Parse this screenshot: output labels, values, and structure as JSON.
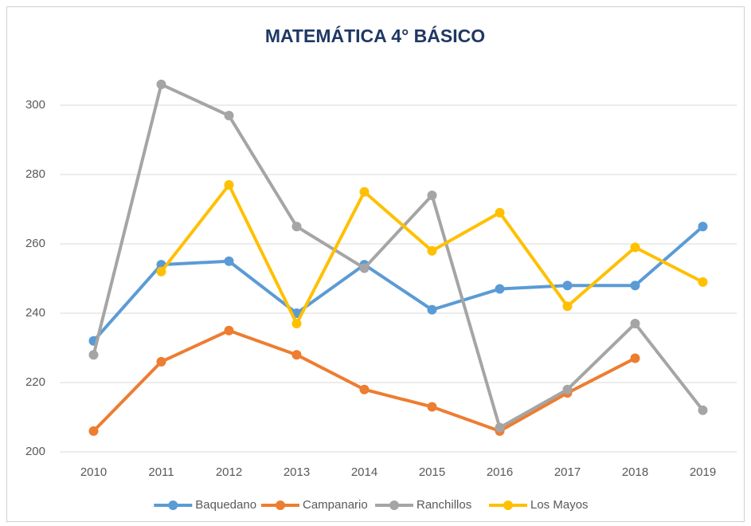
{
  "chart_data": {
    "type": "line",
    "title": "MATEMÁTICA 4° BÁSICO",
    "categories": [
      "2010",
      "2011",
      "2012",
      "2013",
      "2014",
      "2015",
      "2016",
      "2017",
      "2018",
      "2019"
    ],
    "series": [
      {
        "name": "Baquedano",
        "color": "#5b9bd5",
        "values": [
          232,
          254,
          255,
          240,
          254,
          241,
          247,
          248,
          248,
          265
        ]
      },
      {
        "name": "Campanario",
        "color": "#ed7d31",
        "values": [
          206,
          226,
          235,
          228,
          218,
          213,
          206,
          217,
          227,
          null
        ]
      },
      {
        "name": "Ranchillos",
        "color": "#a5a5a5",
        "values": [
          228,
          306,
          297,
          265,
          253,
          274,
          207,
          218,
          237,
          212
        ]
      },
      {
        "name": "Los Mayos",
        "color": "#ffc000",
        "values": [
          null,
          252,
          277,
          237,
          275,
          258,
          269,
          242,
          259,
          249
        ]
      }
    ],
    "ylim": [
      200,
      310
    ],
    "yticks": [
      200,
      220,
      240,
      260,
      280,
      300
    ],
    "grid": true,
    "legend": "bottom"
  }
}
